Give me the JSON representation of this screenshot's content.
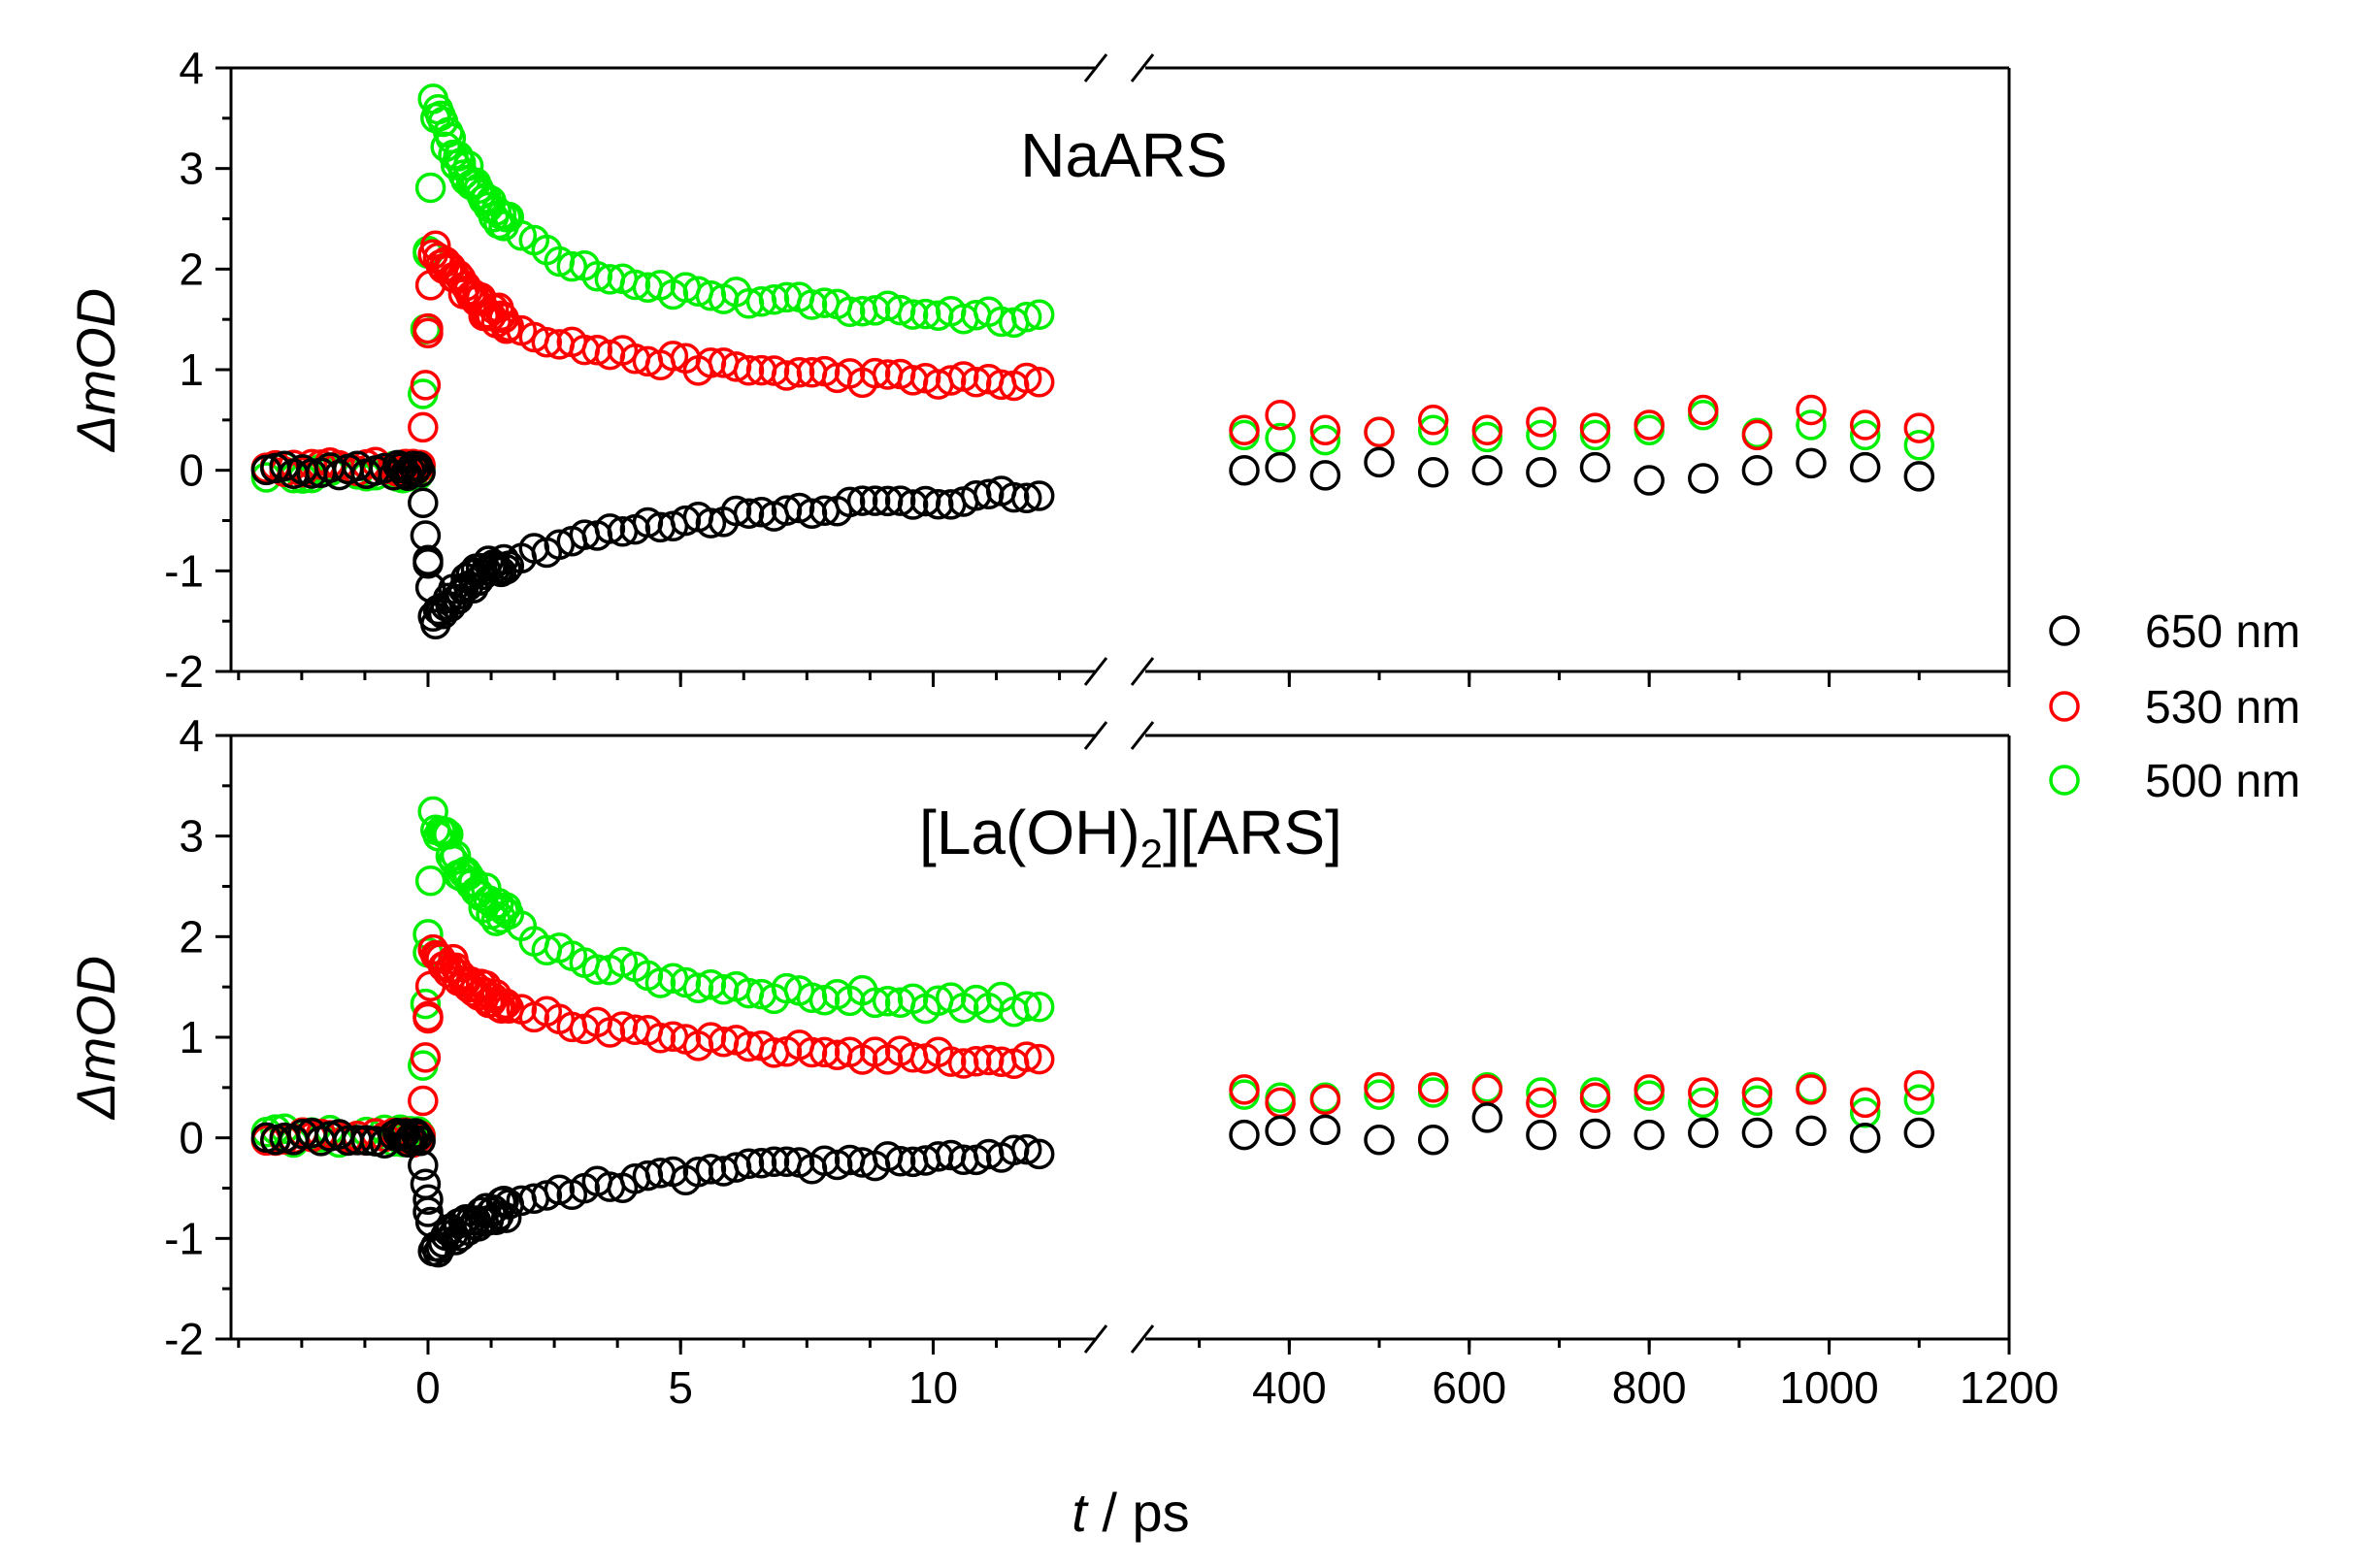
{
  "chart_data": {
    "type": "scatter",
    "x_axis": {
      "label_italic": "t",
      "label_rest": " / ps",
      "break_after": 13.2,
      "segments": [
        {
          "range": [
            -3.9,
            13.2
          ],
          "ticks": [
            0,
            5,
            10
          ],
          "tick_labels": [
            "0",
            "5",
            "10"
          ],
          "minor_step": 1.25
        },
        {
          "range": [
            240,
            1200
          ],
          "ticks": [
            400,
            600,
            800,
            1000,
            1200
          ],
          "tick_labels": [
            "400",
            "600",
            "800",
            "1000",
            "1200"
          ],
          "minor_step": 100
        }
      ]
    },
    "legend": {
      "placement": "right-middle",
      "entries": [
        {
          "label": "650 nm",
          "color": "#000000"
        },
        {
          "label": "530 nm",
          "color": "#ff0000"
        },
        {
          "label": "500 nm",
          "color": "#00ee00"
        }
      ]
    },
    "panels": [
      {
        "title": "NaARS",
        "ylabel": "ΔmOD",
        "ylim": [
          -2,
          4
        ],
        "yticks": [
          -2,
          -1,
          0,
          1,
          2,
          3,
          4
        ],
        "ytick_labels": [
          "-2",
          "-1",
          "0",
          "1",
          "2",
          "3",
          "4"
        ],
        "series": [
          {
            "name": "650 nm",
            "color": "#000000",
            "baseline": 0.0,
            "noise": 0.06,
            "peak": -1.5,
            "decay_fast": 0.35,
            "tau_fast": 0.8,
            "tau_slow": 5.5,
            "plateau": -0.15,
            "long_x": [
              350,
              390,
              440,
              500,
              560,
              620,
              680,
              740,
              800,
              860,
              920,
              980,
              1040,
              1100
            ],
            "long_y": [
              0.0,
              0.03,
              -0.05,
              0.08,
              -0.02,
              0.0,
              -0.02,
              0.03,
              -0.1,
              -0.08,
              0.0,
              0.07,
              0.03,
              -0.06
            ]
          },
          {
            "name": "530 nm",
            "color": "#ff0000",
            "baseline": 0.03,
            "noise": 0.06,
            "peak": 2.2,
            "decay_fast": 0.5,
            "tau_fast": 1.0,
            "tau_slow": 5.0,
            "plateau": 0.8,
            "long_x": [
              350,
              390,
              440,
              500,
              560,
              620,
              680,
              740,
              800,
              860,
              920,
              980,
              1040,
              1100
            ],
            "long_y": [
              0.4,
              0.55,
              0.4,
              0.38,
              0.5,
              0.4,
              0.48,
              0.42,
              0.45,
              0.6,
              0.35,
              0.6,
              0.45,
              0.42
            ]
          },
          {
            "name": "500 nm",
            "color": "#00ee00",
            "baseline": -0.02,
            "noise": 0.07,
            "peak": 3.6,
            "decay_fast": 0.6,
            "tau_fast": 1.2,
            "tau_slow": 5.0,
            "plateau": 1.45,
            "long_x": [
              350,
              390,
              440,
              500,
              560,
              620,
              680,
              740,
              800,
              860,
              920,
              980,
              1040,
              1100
            ],
            "long_y": [
              0.35,
              0.32,
              0.3,
              0.38,
              0.4,
              0.33,
              0.35,
              0.35,
              0.4,
              0.55,
              0.37,
              0.45,
              0.35,
              0.25
            ]
          }
        ]
      },
      {
        "title": "[La(OH)",
        "title_sub": "2",
        "title_end": "][ARS]",
        "ylabel": "ΔmOD",
        "ylim": [
          -2,
          4
        ],
        "yticks": [
          -2,
          -1,
          0,
          1,
          2,
          3,
          4
        ],
        "ytick_labels": [
          "-2",
          "-1",
          "0",
          "1",
          "2",
          "3",
          "4"
        ],
        "series": [
          {
            "name": "650 nm",
            "color": "#000000",
            "baseline": 0.0,
            "noise": 0.06,
            "peak": -1.15,
            "decay_fast": 0.3,
            "tau_fast": 0.8,
            "tau_slow": 5.0,
            "plateau": -0.1,
            "long_x": [
              350,
              390,
              440,
              500,
              560,
              620,
              680,
              740,
              800,
              860,
              920,
              980,
              1040,
              1100
            ],
            "long_y": [
              0.03,
              0.07,
              0.08,
              -0.02,
              -0.02,
              0.2,
              0.03,
              0.04,
              0.03,
              0.05,
              0.05,
              0.07,
              0.0,
              0.05
            ]
          },
          {
            "name": "530 nm",
            "color": "#ff0000",
            "baseline": 0.0,
            "noise": 0.06,
            "peak": 1.9,
            "decay_fast": 0.4,
            "tau_fast": 1.0,
            "tau_slow": 5.0,
            "plateau": 0.7,
            "long_x": [
              350,
              390,
              440,
              500,
              560,
              620,
              680,
              740,
              800,
              860,
              920,
              980,
              1040,
              1100
            ],
            "long_y": [
              0.48,
              0.35,
              0.38,
              0.5,
              0.5,
              0.48,
              0.35,
              0.4,
              0.48,
              0.45,
              0.45,
              0.48,
              0.35,
              0.52
            ]
          },
          {
            "name": "500 nm",
            "color": "#00ee00",
            "baseline": 0.02,
            "noise": 0.08,
            "peak": 3.2,
            "decay_fast": 0.6,
            "tau_fast": 1.2,
            "tau_slow": 5.0,
            "plateau": 1.25,
            "long_x": [
              350,
              390,
              440,
              500,
              560,
              620,
              680,
              740,
              800,
              860,
              920,
              980,
              1040,
              1100
            ],
            "long_y": [
              0.43,
              0.4,
              0.4,
              0.43,
              0.45,
              0.5,
              0.45,
              0.45,
              0.42,
              0.35,
              0.37,
              0.5,
              0.25,
              0.38
            ]
          }
        ]
      }
    ]
  }
}
